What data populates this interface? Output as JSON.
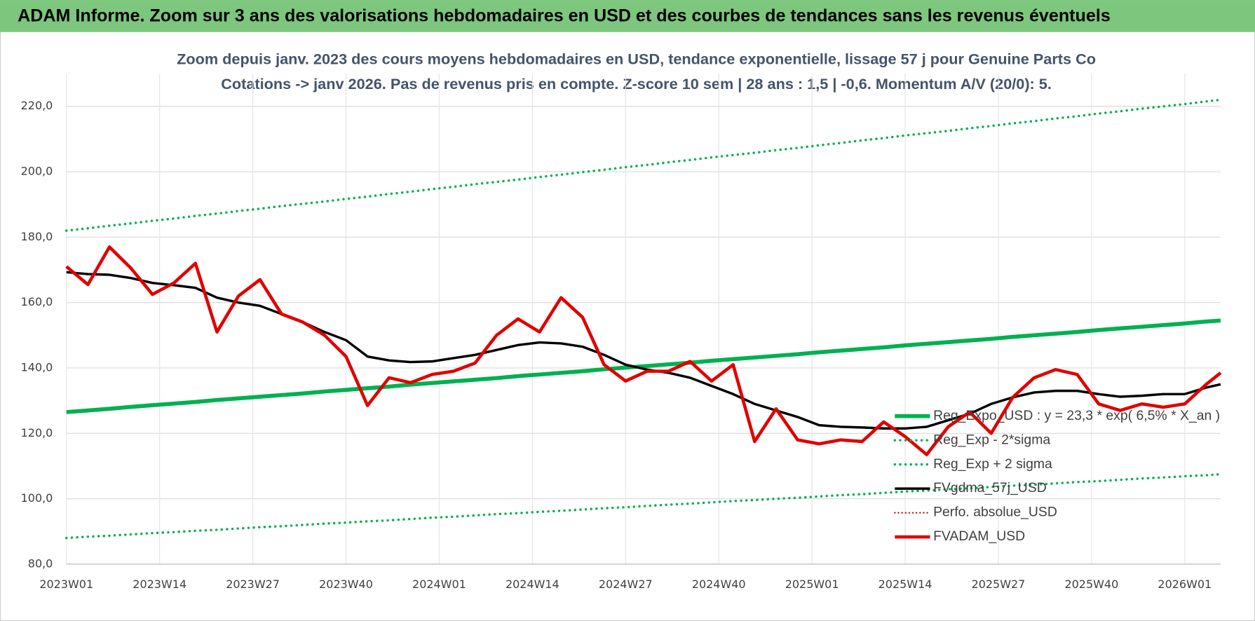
{
  "header_title": "ADAM Informe. Zoom sur 3 ans des valorisations hebdomadaires en USD et des courbes de tendances sans les revenus éventuels",
  "chart_data": {
    "type": "line",
    "title": "Zoom depuis janv. 2023 des cours moyens hebdomadaires en USD, tendance exponentielle, lissage 57 j pour Genuine Parts Co",
    "subtitle": "Cotations -> janv 2026. Pas de revenus pris en compte. Z-score 10 sem | 28 ans : 1,5 | -0,6. Momentum A/V (20/0): 5.",
    "x": [
      0,
      3,
      6,
      9,
      12,
      15,
      18,
      21,
      24,
      27,
      30,
      33,
      36,
      39,
      42,
      45,
      48,
      51,
      54,
      57,
      60,
      63,
      66,
      69,
      72,
      75,
      78,
      81,
      84,
      87,
      90,
      93,
      96,
      99,
      102,
      105,
      108,
      111,
      114,
      117,
      120,
      123,
      126,
      129,
      132,
      135,
      138,
      141,
      144,
      147,
      150,
      153,
      156,
      159,
      161
    ],
    "xlim": [
      0,
      161
    ],
    "xticks": [
      {
        "value": 0,
        "label": "2023W01"
      },
      {
        "value": 13,
        "label": "2023W14"
      },
      {
        "value": 26,
        "label": "2023W27"
      },
      {
        "value": 39,
        "label": "2023W40"
      },
      {
        "value": 52,
        "label": "2024W01"
      },
      {
        "value": 65,
        "label": "2024W14"
      },
      {
        "value": 78,
        "label": "2024W27"
      },
      {
        "value": 91,
        "label": "2024W40"
      },
      {
        "value": 104,
        "label": "2025W01"
      },
      {
        "value": 117,
        "label": "2025W14"
      },
      {
        "value": 130,
        "label": "2025W27"
      },
      {
        "value": 143,
        "label": "2025W40"
      },
      {
        "value": 156,
        "label": "2026W01"
      }
    ],
    "ylim": [
      80,
      230
    ],
    "yticks": [
      {
        "value": 80,
        "label": "80,0"
      },
      {
        "value": 100,
        "label": "100,0"
      },
      {
        "value": 120,
        "label": "120,0"
      },
      {
        "value": 140,
        "label": "140,0"
      },
      {
        "value": 160,
        "label": "160,0"
      },
      {
        "value": 180,
        "label": "180,0"
      },
      {
        "value": 200,
        "label": "200,0"
      },
      {
        "value": 220,
        "label": "220,0"
      }
    ],
    "grid": true,
    "legend": "bottom-right",
    "series": [
      {
        "name": "Reg_Expo_USD : y = 23,3 * exp( 6,5% *  X_an )",
        "color": "#00b050",
        "style": "solid",
        "width": 5,
        "values": [
          126.5,
          127.0,
          127.5,
          128.1,
          128.6,
          129.1,
          129.6,
          130.2,
          130.7,
          131.2,
          131.7,
          132.2,
          132.8,
          133.3,
          133.8,
          134.3,
          134.9,
          135.4,
          135.9,
          136.4,
          136.9,
          137.5,
          138.0,
          138.5,
          139.0,
          139.6,
          140.1,
          140.6,
          141.1,
          141.6,
          142.2,
          142.7,
          143.2,
          143.7,
          144.2,
          144.8,
          145.3,
          145.8,
          146.3,
          146.9,
          147.4,
          147.9,
          148.4,
          148.9,
          149.5,
          150.0,
          150.5,
          151.0,
          151.6,
          152.1,
          152.6,
          153.1,
          153.6,
          154.2,
          154.5
        ]
      },
      {
        "name": "Reg_Exp - 2*sigma",
        "color": "#00b050",
        "style": "dotted",
        "width": 3,
        "values": [
          88.0,
          88.4,
          88.7,
          89.1,
          89.5,
          89.8,
          90.2,
          90.5,
          90.9,
          91.3,
          91.6,
          92.0,
          92.4,
          92.7,
          93.1,
          93.4,
          93.8,
          94.2,
          94.5,
          94.9,
          95.3,
          95.6,
          96.0,
          96.3,
          96.7,
          97.1,
          97.4,
          97.8,
          98.2,
          98.5,
          98.9,
          99.3,
          99.6,
          100.0,
          100.3,
          100.7,
          101.1,
          101.4,
          101.8,
          102.2,
          102.5,
          102.9,
          103.2,
          103.6,
          104.0,
          104.3,
          104.7,
          105.1,
          105.4,
          105.8,
          106.2,
          106.5,
          106.9,
          107.2,
          107.5
        ]
      },
      {
        "name": "Reg_Exp + 2 sigma",
        "color": "#00b050",
        "style": "dotted",
        "width": 3,
        "values": [
          182.0,
          182.7,
          183.5,
          184.2,
          185.0,
          185.7,
          186.5,
          187.2,
          188.0,
          188.7,
          189.5,
          190.2,
          190.9,
          191.7,
          192.4,
          193.2,
          193.9,
          194.7,
          195.4,
          196.2,
          196.9,
          197.6,
          198.4,
          199.1,
          199.9,
          200.6,
          201.4,
          202.1,
          202.9,
          203.6,
          204.4,
          205.1,
          205.8,
          206.6,
          207.3,
          208.1,
          208.8,
          209.6,
          210.3,
          211.1,
          211.8,
          212.5,
          213.3,
          214.0,
          214.8,
          215.5,
          216.3,
          217.0,
          217.8,
          218.5,
          219.3,
          220.0,
          220.7,
          221.5,
          222.0
        ]
      },
      {
        "name": "FVgdma_57j_USD",
        "color": "#000000",
        "style": "solid",
        "width": 3,
        "values": [
          169.3,
          168.7,
          168.5,
          167.5,
          166.0,
          165.3,
          164.5,
          161.5,
          160.0,
          159.0,
          156.5,
          154.0,
          151.0,
          148.5,
          143.5,
          142.3,
          141.8,
          142.0,
          143.0,
          144.0,
          145.5,
          147.0,
          147.8,
          147.5,
          146.5,
          144.0,
          141.0,
          139.5,
          138.5,
          137.0,
          134.5,
          132.0,
          129.0,
          127.0,
          125.0,
          122.5,
          122.0,
          121.8,
          121.5,
          121.5,
          122.0,
          124.0,
          126.0,
          129.0,
          131.0,
          132.5,
          133.0,
          133.0,
          132.0,
          131.2,
          131.5,
          132.0,
          132.0,
          134.0,
          135.0
        ]
      },
      {
        "name": "Perfo. absolue_USD",
        "color": "#c00000",
        "style": "dotted",
        "width": 2
      },
      {
        "name": "FVADAM_USD",
        "color": "#e00000",
        "style": "solid",
        "width": 4,
        "values": [
          171.0,
          165.5,
          177.0,
          170.5,
          162.5,
          166.0,
          172.0,
          151.0,
          162.0,
          167.0,
          156.5,
          154.0,
          150.0,
          143.5,
          128.5,
          137.0,
          135.5,
          138.0,
          139.0,
          141.5,
          150.0,
          155.0,
          151.0,
          161.5,
          155.5,
          141.0,
          136.0,
          139.0,
          139.0,
          142.0,
          136.0,
          141.0,
          117.5,
          127.5,
          118.0,
          116.8,
          118.0,
          117.5,
          123.5,
          119.0,
          113.5,
          122.0,
          126.5,
          120.0,
          131.0,
          137.0,
          139.5,
          138.0,
          129.0,
          127.0,
          129.0,
          128.0,
          129.0,
          135.0,
          138.5
        ]
      }
    ]
  }
}
